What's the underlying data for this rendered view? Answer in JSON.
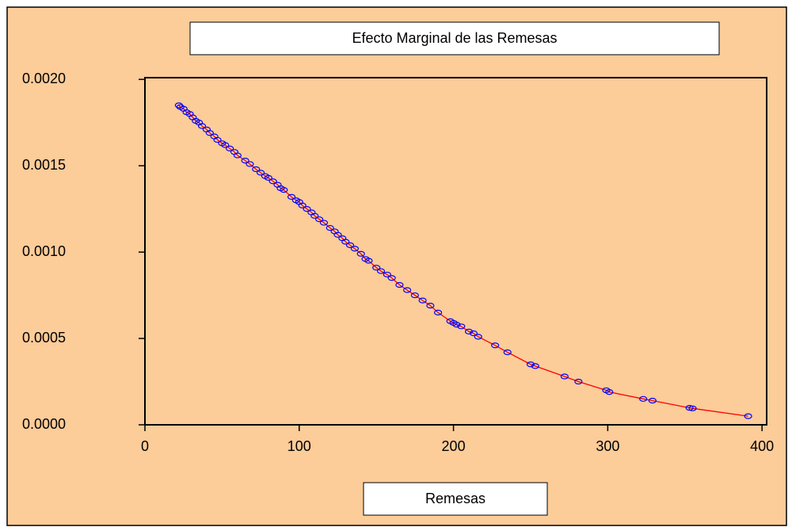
{
  "chart_data": {
    "type": "scatter",
    "title": "Efecto Marginal de las Remesas",
    "x_label": "Remesas",
    "x": [
      22,
      23,
      25,
      27,
      29,
      31,
      33,
      35,
      37,
      40,
      42,
      45,
      47,
      50,
      52,
      55,
      58,
      60,
      65,
      68,
      72,
      75,
      78,
      80,
      83,
      86,
      88,
      90,
      95,
      98,
      100,
      102,
      105,
      108,
      110,
      113,
      116,
      120,
      123,
      125,
      128,
      130,
      133,
      136,
      140,
      143,
      145,
      150,
      153,
      157,
      160,
      165,
      170,
      175,
      180,
      185,
      190,
      198,
      200,
      202,
      205,
      210,
      213,
      216,
      227,
      235,
      250,
      253,
      272,
      281,
      299,
      301,
      323,
      329,
      353,
      355,
      391
    ],
    "values": [
      0.00185,
      0.00184,
      0.00183,
      0.00181,
      0.0018,
      0.00178,
      0.00176,
      0.00175,
      0.00173,
      0.00171,
      0.00169,
      0.00167,
      0.00165,
      0.00163,
      0.00162,
      0.0016,
      0.00158,
      0.00156,
      0.00153,
      0.00151,
      0.00148,
      0.00146,
      0.00144,
      0.00143,
      0.00141,
      0.00139,
      0.00137,
      0.00136,
      0.00132,
      0.0013,
      0.00129,
      0.00127,
      0.00125,
      0.00123,
      0.00121,
      0.00119,
      0.00117,
      0.00114,
      0.00112,
      0.0011,
      0.00108,
      0.00106,
      0.00104,
      0.00102,
      0.00099,
      0.00096,
      0.00095,
      0.00091,
      0.00089,
      0.00087,
      0.00085,
      0.00081,
      0.00078,
      0.00075,
      0.00072,
      0.00069,
      0.00065,
      0.0006,
      0.00059,
      0.00058,
      0.00057,
      0.00054,
      0.00053,
      0.00051,
      0.00046,
      0.00042,
      0.00035,
      0.00034,
      0.00028,
      0.00025,
      0.0002,
      0.00019,
      0.00015,
      0.00014,
      9.8e-05,
      9.5e-05,
      5e-05
    ],
    "marker_color": "#0000ff",
    "line_color": "#ff0000",
    "background": "#fccc99",
    "xlim": [
      0,
      403
    ],
    "ylim": [
      0,
      0.00201
    ],
    "xticks": [
      0,
      100,
      200,
      300,
      400
    ],
    "yticks": [
      {
        "value": 0,
        "label": "0.0000"
      },
      {
        "value": 0.0005,
        "label": "0.0005"
      },
      {
        "value": 0.001,
        "label": "0.0010"
      },
      {
        "value": 0.0015,
        "label": "0.0015"
      },
      {
        "value": 0.002,
        "label": "0.0020"
      }
    ]
  }
}
